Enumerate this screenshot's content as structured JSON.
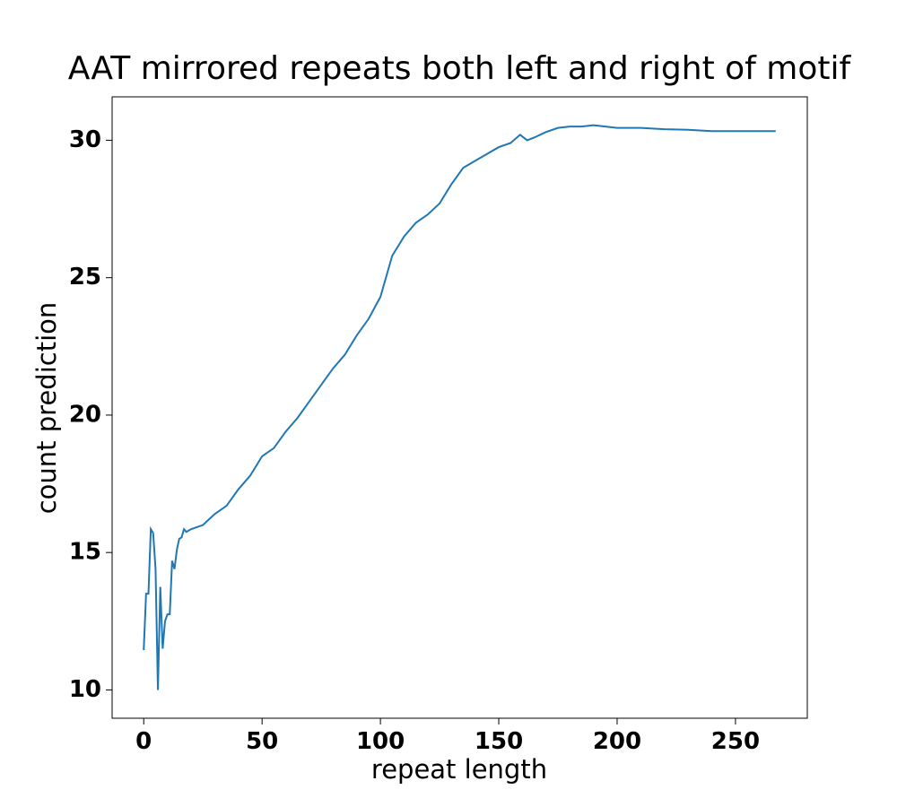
{
  "chart_data": {
    "type": "line",
    "title": "AAT mirrored repeats both left and right of motif",
    "x_label": "repeat length",
    "y_label": "count prediction",
    "color": "#1f77b4",
    "x": [
      0,
      1,
      2,
      3,
      4,
      5,
      6,
      7,
      8,
      9,
      10,
      11,
      12,
      13,
      14,
      15,
      16,
      17,
      18,
      19,
      20,
      25,
      30,
      35,
      40,
      45,
      50,
      55,
      60,
      65,
      70,
      75,
      80,
      85,
      90,
      95,
      100,
      105,
      110,
      115,
      120,
      125,
      130,
      135,
      140,
      145,
      150,
      155,
      159,
      162,
      165,
      170,
      175,
      180,
      185,
      190,
      195,
      200,
      210,
      220,
      230,
      240,
      250,
      260,
      267
    ],
    "values": [
      11.45,
      13.5,
      13.5,
      15.85,
      15.7,
      14.4,
      10.0,
      13.75,
      11.5,
      12.5,
      12.75,
      12.75,
      14.7,
      14.4,
      15.1,
      15.5,
      15.55,
      15.85,
      15.75,
      15.8,
      15.85,
      16.0,
      16.4,
      16.7,
      17.3,
      17.8,
      18.5,
      18.8,
      19.4,
      19.9,
      20.5,
      21.1,
      21.7,
      22.2,
      22.9,
      23.5,
      24.3,
      25.8,
      26.5,
      27.0,
      27.3,
      27.7,
      28.4,
      29.0,
      29.25,
      29.5,
      29.75,
      29.9,
      30.2,
      30.0,
      30.1,
      30.3,
      30.45,
      30.5,
      30.5,
      30.55,
      30.5,
      30.45,
      30.45,
      30.4,
      30.38,
      30.33,
      30.33,
      30.33,
      30.33
    ],
    "xlim": [
      -13.35,
      280.35
    ],
    "ylim": [
      8.97,
      31.58
    ],
    "xticks": [
      0,
      50,
      100,
      150,
      200,
      250
    ],
    "yticks": [
      10,
      15,
      20,
      25,
      30
    ],
    "grid": false
  }
}
